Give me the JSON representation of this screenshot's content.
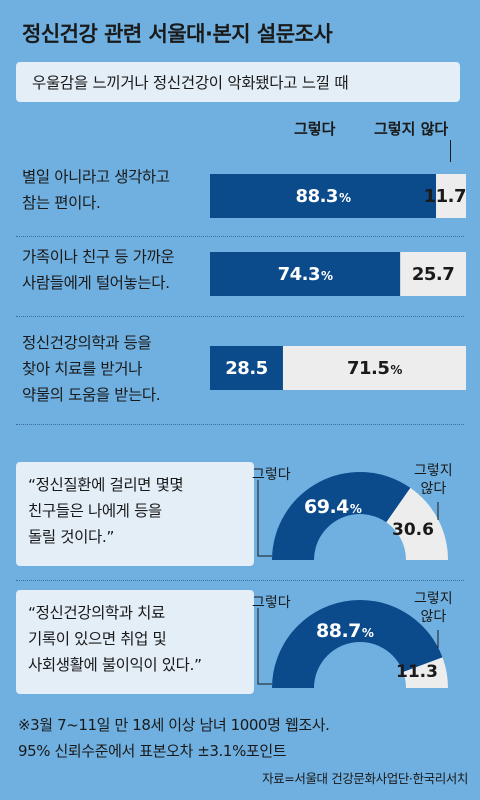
{
  "title": "정신건강 관련 서울대·본지 설문조사",
  "subtitle": "우울감을 느끼거나 정신건강이 악화됐다고 느낄 때",
  "legend": {
    "yes": "그렇다",
    "no": "그렇지 않다"
  },
  "colors": {
    "yes": "#0b4a8b",
    "no": "#ededed",
    "background": "#6fb0e0",
    "box": "#e3eef7"
  },
  "chart_data": [
    {
      "type": "bar",
      "orientation": "horizontal-stacked",
      "series": [
        {
          "name": "그렇다"
        },
        {
          "name": "그렇지 않다"
        }
      ],
      "rows": [
        {
          "label": "별일 아니라고 생각하고\n참는 편이다.",
          "yes": 88.3,
          "no": 11.7,
          "yes_text": "88.3",
          "no_text": "11.7"
        },
        {
          "label": "가족이나 친구 등 가까운\n사람들에게 털어놓는다.",
          "yes": 74.3,
          "no": 25.7,
          "yes_text": "74.3",
          "no_text": "25.7"
        },
        {
          "label": "정신건강의학과 등을\n찾아 치료를 받거나\n약물의 도움을 받는다.",
          "yes": 28.5,
          "no": 71.5,
          "yes_text": "28.5",
          "no_text": "71.5"
        }
      ]
    },
    {
      "type": "pie",
      "style": "half-donut",
      "question": "“정신질환에 걸리면 몇몇\n친구들은 나에게 등을\n돌릴 것이다.”",
      "yes": 69.4,
      "no": 30.6,
      "yes_text": "69.4",
      "no_text": "30.6",
      "yes_label": "그렇다",
      "no_label": "그렇지\n않다"
    },
    {
      "type": "pie",
      "style": "half-donut",
      "question": "“정신건강의학과 치료\n기록이 있으면 취업 및\n사회생활에 불이익이 있다.”",
      "yes": 88.7,
      "no": 11.3,
      "yes_text": "88.7",
      "no_text": "11.3",
      "yes_label": "그렇다",
      "no_label": "그렇지\n않다"
    }
  ],
  "pct_sign": "%",
  "footnote": "※3월 7~11일 만 18세 이상 남녀 1000명 웹조사.\n   95% 신뢰수준에서 표본오차 ±3.1%포인트",
  "source": "자료=서울대 건강문화사업단·한국리서치"
}
